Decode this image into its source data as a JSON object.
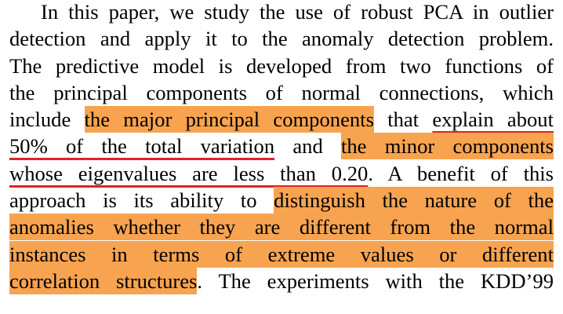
{
  "paragraph": {
    "lines": [
      "In this paper, we study the use of robust PCA in outlier",
      "detection and apply it to the anomaly detection problem.",
      "The predictive model is developed from two functions of",
      "the principal components of normal connections, which",
      {
        "before": "include ",
        "highlight": "the major principal components",
        "middle": " that ",
        "underline": "explain about"
      },
      {
        "underline": "50% of the total variation",
        "middle": " and ",
        "highlight": "the minor components"
      },
      {
        "underline": "whose eigenvalues are less than 0.20",
        "after": ". A benefit of this"
      },
      {
        "before": "approach is its ability to ",
        "highlight": "distinguish the nature of the"
      },
      {
        "highlight": "anomalies whether they are different from the normal"
      },
      {
        "highlight": "instances in terms of extreme values or different"
      },
      {
        "highlight": "correlation structures",
        "after": ".  The experiments with the KDD’99"
      }
    ]
  },
  "colors": {
    "highlight": "#f7a350",
    "underline": "#e0222b",
    "text": "#000000",
    "background": "#ffffff"
  }
}
